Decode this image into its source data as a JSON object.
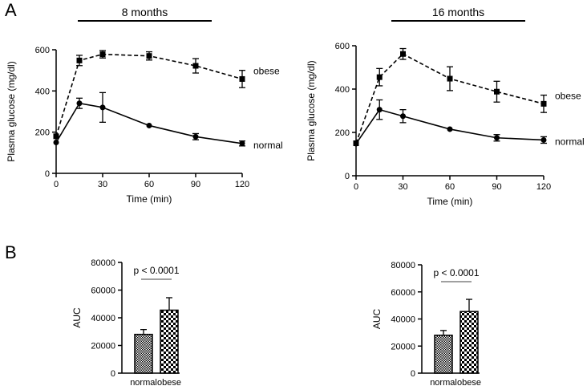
{
  "panel_labels": [
    "A",
    "B"
  ],
  "colors": {
    "ink": "#000000",
    "background": "#ffffff",
    "hatch_light": "#ffffff"
  },
  "chart_data": [
    {
      "id": "ogtt-8m",
      "type": "line",
      "title": "8 months",
      "xlabel": "Time (min)",
      "ylabel": "Plasma glucose (mg/dl)",
      "xlim": [
        0,
        120
      ],
      "ylim": [
        0,
        600
      ],
      "xticks": [
        0,
        30,
        60,
        90,
        120
      ],
      "yticks": [
        0,
        200,
        400,
        600
      ],
      "series": [
        {
          "name": "obese",
          "style": "dashed",
          "marker": "square",
          "x": [
            0,
            15,
            30,
            60,
            90,
            120
          ],
          "y": [
            180,
            548,
            578,
            570,
            522,
            458
          ],
          "err": [
            0,
            25,
            18,
            20,
            35,
            42
          ]
        },
        {
          "name": "normal",
          "style": "solid",
          "marker": "circle",
          "x": [
            0,
            15,
            30,
            60,
            90,
            120
          ],
          "y": [
            150,
            340,
            320,
            232,
            178,
            145
          ],
          "err": [
            0,
            25,
            72,
            0,
            15,
            12
          ]
        }
      ]
    },
    {
      "id": "ogtt-16m",
      "type": "line",
      "title": "16 months",
      "xlabel": "Time (min)",
      "ylabel": "Plasma glucose (mg/dl)",
      "xlim": [
        0,
        120
      ],
      "ylim": [
        0,
        600
      ],
      "xticks": [
        0,
        30,
        60,
        90,
        120
      ],
      "yticks": [
        0,
        200,
        400,
        600
      ],
      "series": [
        {
          "name": "obese",
          "style": "dashed",
          "marker": "square",
          "x": [
            0,
            15,
            30,
            60,
            90,
            120
          ],
          "y": [
            150,
            455,
            562,
            448,
            388,
            332
          ],
          "err": [
            0,
            40,
            25,
            55,
            48,
            40
          ]
        },
        {
          "name": "normal",
          "style": "solid",
          "marker": "circle",
          "x": [
            0,
            15,
            30,
            60,
            90,
            120
          ],
          "y": [
            148,
            305,
            275,
            215,
            175,
            165
          ],
          "err": [
            0,
            45,
            30,
            0,
            15,
            15
          ]
        }
      ]
    },
    {
      "id": "auc-8m",
      "type": "bar",
      "ylabel": "AUC",
      "ylim": [
        0,
        80000
      ],
      "yticks": [
        0,
        20000,
        40000,
        60000,
        80000
      ],
      "categories": [
        "normal",
        "obese"
      ],
      "values": [
        28000,
        45500
      ],
      "err": [
        3500,
        9000
      ],
      "annotation": "p < 0.0001"
    },
    {
      "id": "auc-16m",
      "type": "bar",
      "ylabel": "AUC",
      "ylim": [
        0,
        80000
      ],
      "yticks": [
        0,
        20000,
        40000,
        60000,
        80000
      ],
      "categories": [
        "normal",
        "obese"
      ],
      "values": [
        28000,
        45500
      ],
      "err": [
        3500,
        9000
      ],
      "annotation": "p < 0.0001"
    }
  ]
}
